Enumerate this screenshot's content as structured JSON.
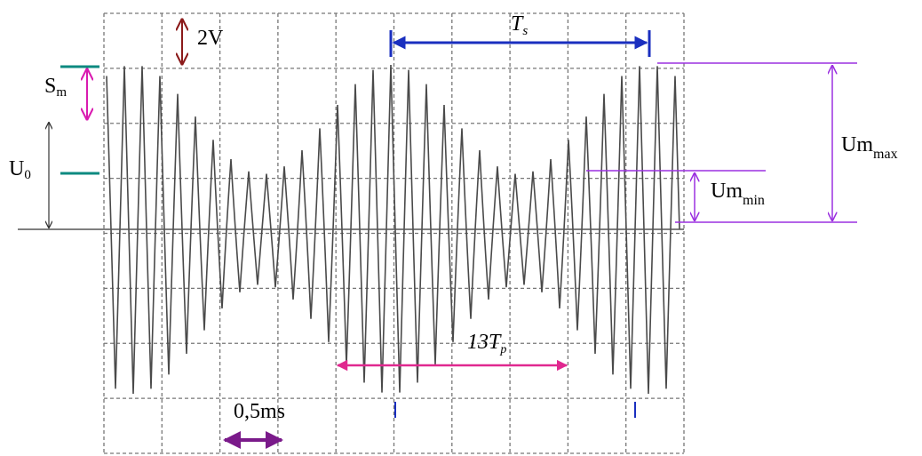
{
  "annotations": {
    "amplitude_scale": "2V",
    "signal_period": {
      "base": "T",
      "sub": "s"
    },
    "modulation_depth": {
      "base": "S",
      "sub": "m"
    },
    "offset": {
      "base": "U",
      "sub": "0"
    },
    "max_amplitude": {
      "base": "U",
      "sub": "m",
      "subsub": "max"
    },
    "min_amplitude": {
      "base": "U",
      "sub": "m",
      "subsub": "min"
    },
    "carrier_periods": {
      "base": "13T",
      "sub": "p"
    },
    "time_scale": "0,5ms"
  }
}
